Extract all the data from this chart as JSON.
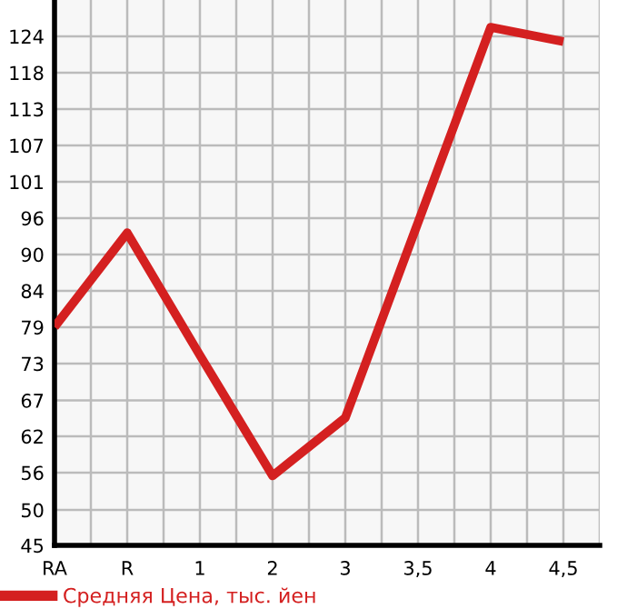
{
  "chart_data": {
    "type": "line",
    "categories": [
      "RA",
      "R",
      "1",
      "2",
      "3",
      "3,5",
      "4",
      "4,5"
    ],
    "series": [
      {
        "name": "Средняя Цена, тыс. йен",
        "color": "#d42020",
        "values": [
          78.9,
          93.5,
          74.5,
          55.8,
          64.8,
          95.1,
          125.4,
          123.2
        ]
      }
    ],
    "ylim": [
      45,
      129.64
    ],
    "yticks": [
      {
        "value": 45,
        "label": "45"
      },
      {
        "value": 50.49,
        "label": "50"
      },
      {
        "value": 56.29,
        "label": "56"
      },
      {
        "value": 61.93,
        "label": "62"
      },
      {
        "value": 67.49,
        "label": "67"
      },
      {
        "value": 73.21,
        "label": "73"
      },
      {
        "value": 78.86,
        "label": "79"
      },
      {
        "value": 84.5,
        "label": "84"
      },
      {
        "value": 90.14,
        "label": "90"
      },
      {
        "value": 95.79,
        "label": "96"
      },
      {
        "value": 101.43,
        "label": "101"
      },
      {
        "value": 107.07,
        "label": "107"
      },
      {
        "value": 112.71,
        "label": "113"
      },
      {
        "value": 118.36,
        "label": "118"
      },
      {
        "value": 124,
        "label": "124"
      }
    ],
    "grid": true,
    "legend": "bottom",
    "marker": "none",
    "line_style": "solid"
  }
}
